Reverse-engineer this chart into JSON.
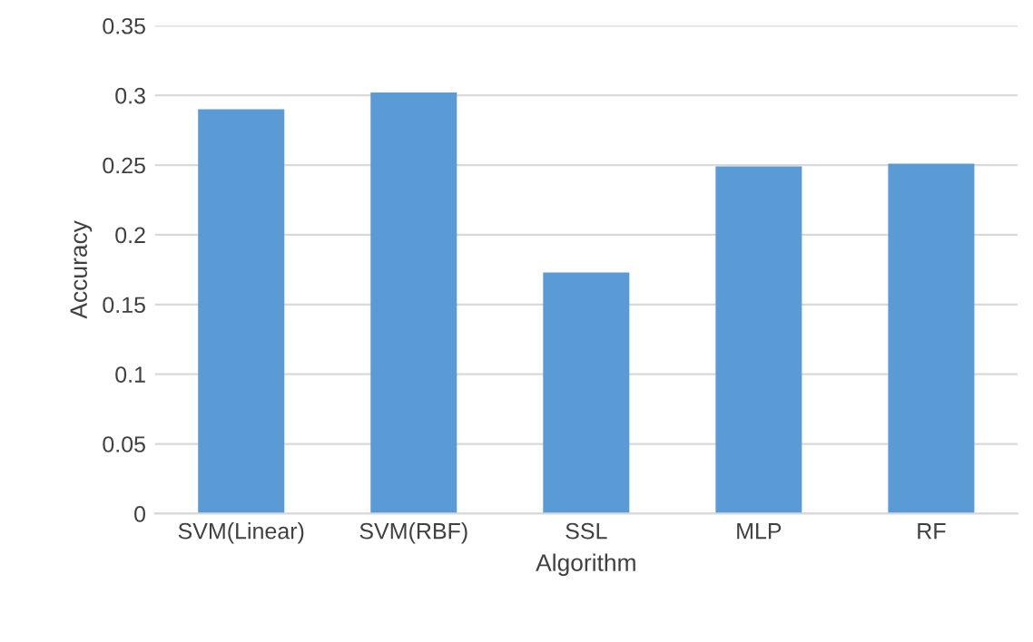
{
  "chart_data": {
    "type": "bar",
    "xlabel": "Algorithm",
    "ylabel": "Accuracy",
    "categories": [
      "SVM(Linear)",
      "SVM(RBF)",
      "SSL",
      "MLP",
      "RF"
    ],
    "values": [
      0.29,
      0.302,
      0.173,
      0.249,
      0.251
    ],
    "color": "#5b9bd5",
    "ylim": [
      0,
      0.35
    ],
    "yticks": [
      0,
      0.05,
      0.1,
      0.15,
      0.2,
      0.25,
      0.3,
      0.35
    ],
    "grid": "y",
    "legend": false
  }
}
